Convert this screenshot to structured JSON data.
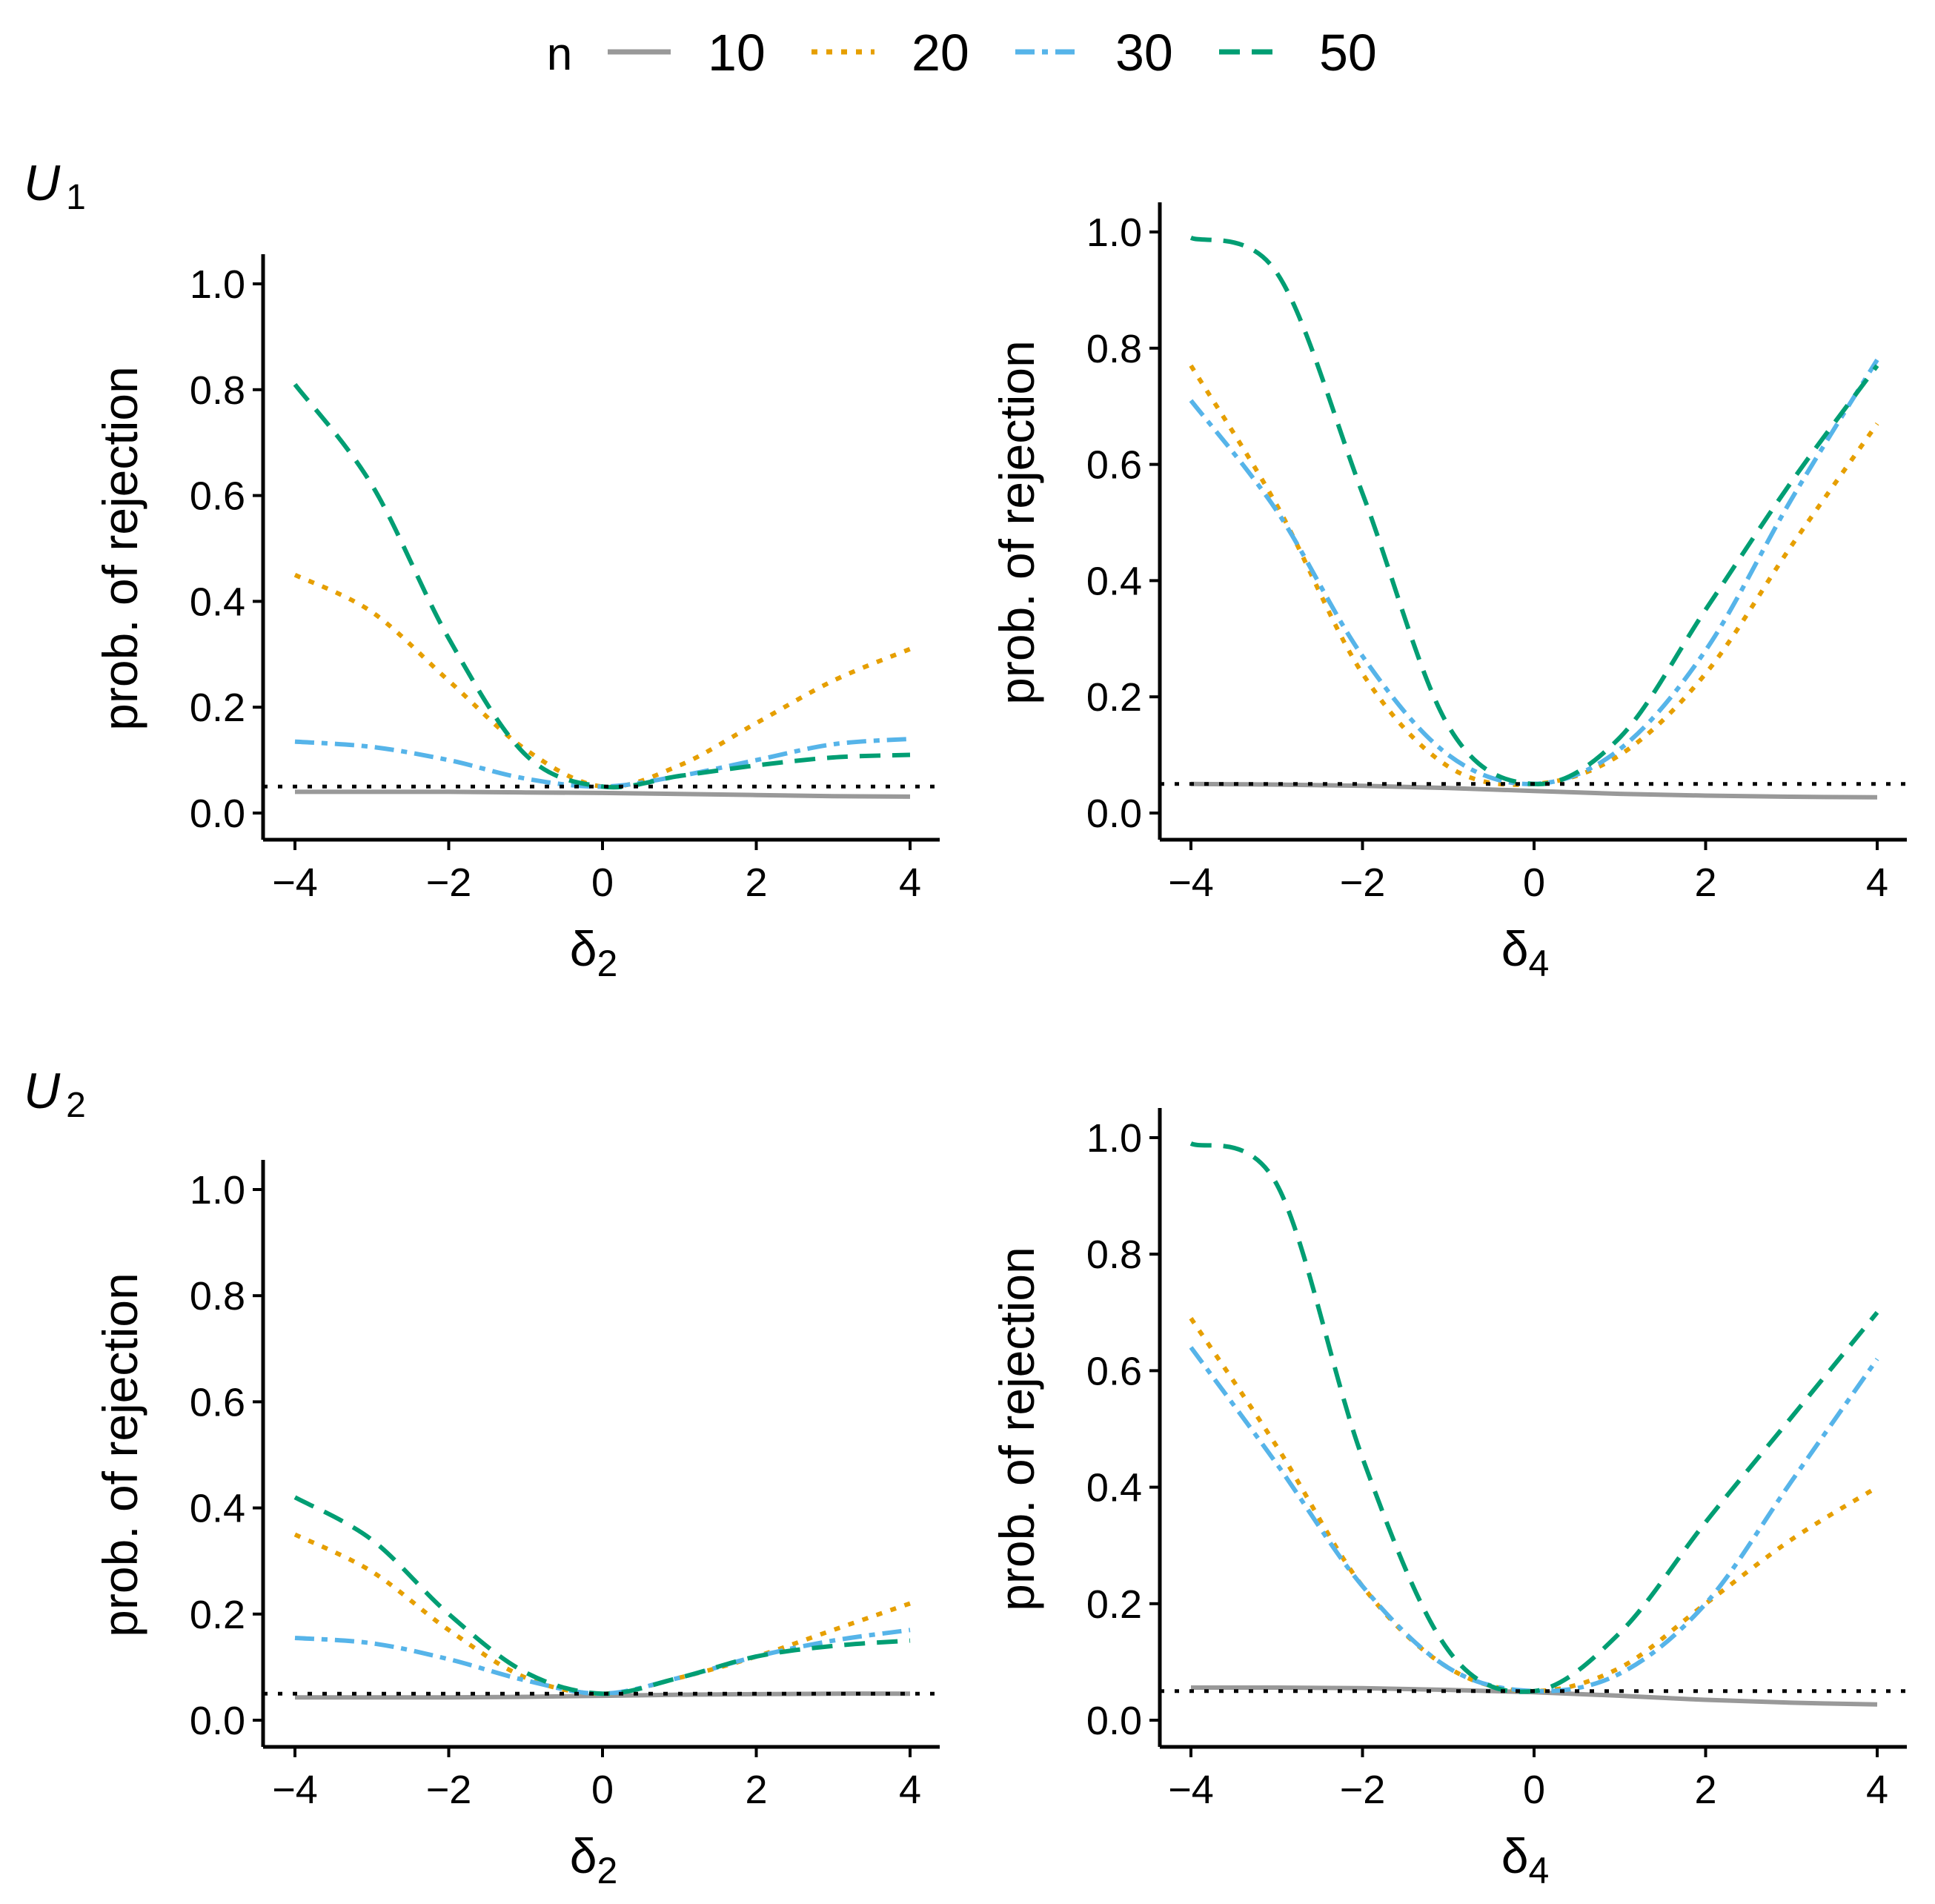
{
  "legend": {
    "title": "n",
    "entries": [
      {
        "label": "10",
        "color": "#999999",
        "dash": "solid"
      },
      {
        "label": "20",
        "color": "#E69F00",
        "dash": "dotted"
      },
      {
        "label": "30",
        "color": "#56B4E9",
        "dash": "dotdash"
      },
      {
        "label": "50",
        "color": "#009E73",
        "dash": "dashed"
      }
    ]
  },
  "rows": [
    {
      "label": "U",
      "sub": "1"
    },
    {
      "label": "U",
      "sub": "2"
    }
  ],
  "reference_level": 0.05,
  "chart_data": [
    {
      "type": "line",
      "row": 0,
      "col": 0,
      "xlabel": "δ",
      "xlabel_sub": "2",
      "ylabel": "prob. of rejection",
      "xlim": [
        -4,
        4
      ],
      "ylim": [
        0,
        1
      ],
      "xticks": [
        "−4",
        "−2",
        "0",
        "2",
        "4"
      ],
      "yticks": [
        "0.0",
        "0.2",
        "0.4",
        "0.6",
        "0.8",
        "1.0"
      ],
      "x": [
        -4,
        -3,
        -2,
        -1,
        0,
        1,
        2,
        3,
        4
      ],
      "series": [
        {
          "name": "10",
          "values": [
            0.04,
            0.04,
            0.04,
            0.039,
            0.038,
            0.036,
            0.034,
            0.032,
            0.031
          ]
        },
        {
          "name": "20",
          "values": [
            0.45,
            0.38,
            0.25,
            0.12,
            0.05,
            0.09,
            0.17,
            0.25,
            0.31
          ]
        },
        {
          "name": "30",
          "values": [
            0.135,
            0.125,
            0.1,
            0.065,
            0.05,
            0.07,
            0.1,
            0.13,
            0.14
          ]
        },
        {
          "name": "50",
          "values": [
            0.81,
            0.62,
            0.33,
            0.11,
            0.05,
            0.07,
            0.09,
            0.105,
            0.11
          ]
        }
      ]
    },
    {
      "type": "line",
      "row": 0,
      "col": 1,
      "xlabel": "δ",
      "xlabel_sub": "4",
      "ylabel": "prob. of rejection",
      "xlim": [
        -4,
        4
      ],
      "ylim": [
        0,
        1
      ],
      "xticks": [
        "−4",
        "−2",
        "0",
        "2",
        "4"
      ],
      "yticks": [
        "0.0",
        "0.2",
        "0.4",
        "0.6",
        "0.8",
        "1.0"
      ],
      "x": [
        -4,
        -3,
        -2,
        -1,
        0,
        1,
        2,
        3,
        4
      ],
      "series": [
        {
          "name": "10",
          "values": [
            0.05,
            0.049,
            0.047,
            0.043,
            0.038,
            0.033,
            0.03,
            0.028,
            0.027
          ]
        },
        {
          "name": "20",
          "values": [
            0.77,
            0.53,
            0.24,
            0.08,
            0.05,
            0.1,
            0.24,
            0.46,
            0.67
          ]
        },
        {
          "name": "30",
          "values": [
            0.71,
            0.52,
            0.27,
            0.1,
            0.05,
            0.11,
            0.28,
            0.54,
            0.78
          ]
        },
        {
          "name": "50",
          "values": [
            0.99,
            0.93,
            0.55,
            0.15,
            0.05,
            0.13,
            0.35,
            0.57,
            0.77
          ]
        }
      ]
    },
    {
      "type": "line",
      "row": 1,
      "col": 0,
      "xlabel": "δ",
      "xlabel_sub": "2",
      "ylabel": "prob. of rejection",
      "xlim": [
        -4,
        4
      ],
      "ylim": [
        0,
        1
      ],
      "xticks": [
        "−4",
        "−2",
        "0",
        "2",
        "4"
      ],
      "yticks": [
        "0.0",
        "0.2",
        "0.4",
        "0.6",
        "0.8",
        "1.0"
      ],
      "x": [
        -4,
        -3,
        -2,
        -1,
        0,
        1,
        2,
        3,
        4
      ],
      "series": [
        {
          "name": "10",
          "values": [
            0.043,
            0.043,
            0.043,
            0.044,
            0.046,
            0.048,
            0.049,
            0.05,
            0.05
          ]
        },
        {
          "name": "20",
          "values": [
            0.35,
            0.28,
            0.17,
            0.08,
            0.05,
            0.08,
            0.12,
            0.17,
            0.22
          ]
        },
        {
          "name": "30",
          "values": [
            0.155,
            0.145,
            0.115,
            0.075,
            0.05,
            0.08,
            0.12,
            0.15,
            0.17
          ]
        },
        {
          "name": "50",
          "values": [
            0.42,
            0.34,
            0.2,
            0.09,
            0.05,
            0.08,
            0.12,
            0.14,
            0.15
          ]
        }
      ]
    },
    {
      "type": "line",
      "row": 1,
      "col": 1,
      "xlabel": "δ",
      "xlabel_sub": "4",
      "ylabel": "prob. of rejection",
      "xlim": [
        -4,
        4
      ],
      "ylim": [
        0,
        1
      ],
      "xticks": [
        "−4",
        "−2",
        "0",
        "2",
        "4"
      ],
      "yticks": [
        "0.0",
        "0.2",
        "0.4",
        "0.6",
        "0.8",
        "1.0"
      ],
      "x": [
        -4,
        -3,
        -2,
        -1,
        0,
        1,
        2,
        3,
        4
      ],
      "series": [
        {
          "name": "10",
          "values": [
            0.056,
            0.056,
            0.055,
            0.052,
            0.048,
            0.042,
            0.035,
            0.03,
            0.027
          ]
        },
        {
          "name": "20",
          "values": [
            0.69,
            0.47,
            0.23,
            0.09,
            0.05,
            0.09,
            0.2,
            0.31,
            0.4
          ]
        },
        {
          "name": "30",
          "values": [
            0.64,
            0.44,
            0.23,
            0.09,
            0.05,
            0.08,
            0.2,
            0.41,
            0.62
          ]
        },
        {
          "name": "50",
          "values": [
            0.99,
            0.92,
            0.45,
            0.12,
            0.05,
            0.15,
            0.34,
            0.52,
            0.7
          ]
        }
      ]
    }
  ]
}
